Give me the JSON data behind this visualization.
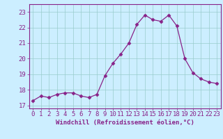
{
  "x": [
    0,
    1,
    2,
    3,
    4,
    5,
    6,
    7,
    8,
    9,
    10,
    11,
    12,
    13,
    14,
    15,
    16,
    17,
    18,
    19,
    20,
    21,
    22,
    23
  ],
  "y": [
    17.3,
    17.6,
    17.5,
    17.7,
    17.8,
    17.8,
    17.6,
    17.5,
    17.7,
    18.9,
    19.7,
    20.3,
    21.0,
    22.2,
    22.8,
    22.5,
    22.4,
    22.8,
    22.1,
    20.0,
    19.1,
    18.7,
    18.5,
    18.4
  ],
  "line_color": "#882288",
  "marker": "D",
  "marker_size": 2.5,
  "bg_color": "#cceeff",
  "grid_color": "#99cccc",
  "xlabel": "Windchill (Refroidissement éolien,°C)",
  "xlabel_color": "#882288",
  "tick_color": "#882288",
  "spine_color": "#882288",
  "ylim": [
    16.8,
    23.5
  ],
  "xlim": [
    -0.5,
    23.5
  ],
  "yticks": [
    17,
    18,
    19,
    20,
    21,
    22,
    23
  ],
  "xticks": [
    0,
    1,
    2,
    3,
    4,
    5,
    6,
    7,
    8,
    9,
    10,
    11,
    12,
    13,
    14,
    15,
    16,
    17,
    18,
    19,
    20,
    21,
    22,
    23
  ],
  "tick_fontsize": 6.5,
  "xlabel_fontsize": 6.5
}
